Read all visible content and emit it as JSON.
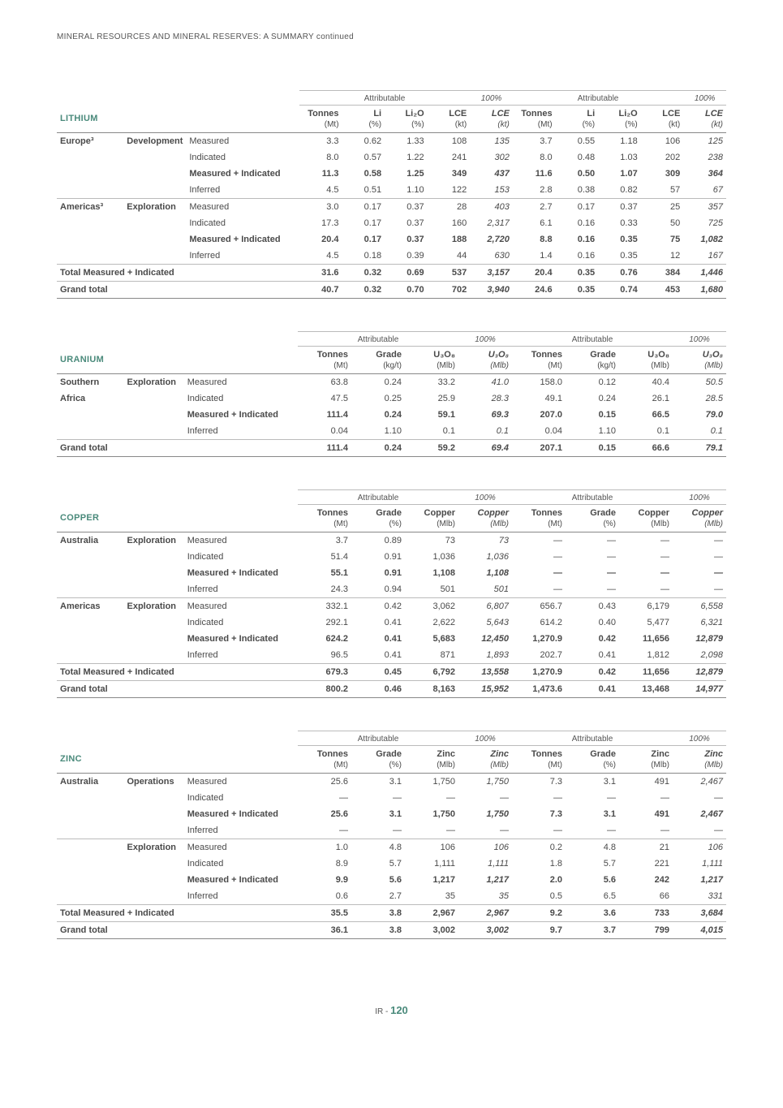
{
  "page_header": "MINERAL RESOURCES AND MINERAL RESERVES: A SUMMARY continued",
  "footer_prefix": "IR - ",
  "footer_page": "120",
  "group_labels": {
    "attributable": "Attributable",
    "hundred": "100%"
  },
  "em_dash": "—",
  "tables": [
    {
      "commodity": "LITHIUM",
      "columns": {
        "names": [
          "Tonnes",
          "Li",
          "Li₂O",
          "LCE",
          "LCE",
          "Tonnes",
          "Li",
          "Li₂O",
          "LCE",
          "LCE"
        ],
        "units": [
          "(Mt)",
          "(%)",
          "(%)",
          "(kt)",
          "(kt)",
          "(Mt)",
          "(%)",
          "(%)",
          "(kt)",
          "(kt)"
        ],
        "hundred": [
          false,
          false,
          false,
          false,
          true,
          false,
          false,
          false,
          false,
          true
        ]
      },
      "rows": [
        {
          "region": "Europe³",
          "stage": "Development",
          "cat": "Measured",
          "v": [
            "3.3",
            "0.62",
            "1.33",
            "108",
            "135",
            "3.7",
            "0.55",
            "1.18",
            "106",
            "125"
          ],
          "top": "section"
        },
        {
          "region": "",
          "stage": "",
          "cat": "Indicated",
          "v": [
            "8.0",
            "0.57",
            "1.22",
            "241",
            "302",
            "8.0",
            "0.48",
            "1.03",
            "202",
            "238"
          ]
        },
        {
          "region": "",
          "stage": "",
          "cat": "Measured + Indicated",
          "v": [
            "11.3",
            "0.58",
            "1.25",
            "349",
            "437",
            "11.6",
            "0.50",
            "1.07",
            "309",
            "364"
          ],
          "bold": true
        },
        {
          "region": "",
          "stage": "",
          "cat": "Inferred",
          "v": [
            "4.5",
            "0.51",
            "1.10",
            "122",
            "153",
            "2.8",
            "0.38",
            "0.82",
            "57",
            "67"
          ]
        },
        {
          "region": "Americas³",
          "stage": "Exploration",
          "cat": "Measured",
          "v": [
            "3.0",
            "0.17",
            "0.37",
            "28",
            "403",
            "2.7",
            "0.17",
            "0.37",
            "25",
            "357"
          ],
          "top": "thin"
        },
        {
          "region": "",
          "stage": "",
          "cat": "Indicated",
          "v": [
            "17.3",
            "0.17",
            "0.37",
            "160",
            "2,317",
            "6.1",
            "0.16",
            "0.33",
            "50",
            "725"
          ]
        },
        {
          "region": "",
          "stage": "",
          "cat": "Measured + Indicated",
          "v": [
            "20.4",
            "0.17",
            "0.37",
            "188",
            "2,720",
            "8.8",
            "0.16",
            "0.35",
            "75",
            "1,082"
          ],
          "bold": true
        },
        {
          "region": "",
          "stage": "",
          "cat": "Inferred",
          "v": [
            "4.5",
            "0.18",
            "0.39",
            "44",
            "630",
            "1.4",
            "0.16",
            "0.35",
            "12",
            "167"
          ]
        },
        {
          "region": "Total Measured + Indicated",
          "span": 3,
          "v": [
            "31.6",
            "0.32",
            "0.69",
            "537",
            "3,157",
            "20.4",
            "0.35",
            "0.76",
            "384",
            "1,446"
          ],
          "bold": true,
          "top": "thin"
        },
        {
          "region": "Grand total",
          "span": 3,
          "v": [
            "40.7",
            "0.32",
            "0.70",
            "702",
            "3,940",
            "24.6",
            "0.35",
            "0.74",
            "453",
            "1,680"
          ],
          "bold": true,
          "bottom": "section",
          "top": "thin"
        }
      ]
    },
    {
      "commodity": "URANIUM",
      "columns": {
        "names": [
          "Tonnes",
          "Grade",
          "U₃O₈",
          "U₃O₈",
          "Tonnes",
          "Grade",
          "U₃O₈",
          "U₃O₈"
        ],
        "units": [
          "(Mt)",
          "(kg/t)",
          "(Mlb)",
          "(Mlb)",
          "(Mt)",
          "(kg/t)",
          "(Mlb)",
          "(Mlb)"
        ],
        "hundred": [
          false,
          false,
          false,
          true,
          false,
          false,
          false,
          true
        ]
      },
      "rows": [
        {
          "region": "Southern",
          "stage": "Exploration",
          "cat": "Measured",
          "v": [
            "63.8",
            "0.24",
            "33.2",
            "41.0",
            "158.0",
            "0.12",
            "40.4",
            "50.5"
          ],
          "top": "section"
        },
        {
          "region": "Africa",
          "stage": "",
          "cat": "Indicated",
          "v": [
            "47.5",
            "0.25",
            "25.9",
            "28.3",
            "49.1",
            "0.24",
            "26.1",
            "28.5"
          ]
        },
        {
          "region": "",
          "stage": "",
          "cat": "Measured + Indicated",
          "v": [
            "111.4",
            "0.24",
            "59.1",
            "69.3",
            "207.0",
            "0.15",
            "66.5",
            "79.0"
          ],
          "bold": true
        },
        {
          "region": "",
          "stage": "",
          "cat": "Inferred",
          "v": [
            "0.04",
            "1.10",
            "0.1",
            "0.1",
            "0.04",
            "1.10",
            "0.1",
            "0.1"
          ]
        },
        {
          "region": "Grand total",
          "span": 3,
          "v": [
            "111.4",
            "0.24",
            "59.2",
            "69.4",
            "207.1",
            "0.15",
            "66.6",
            "79.1"
          ],
          "bold": true,
          "bottom": "section",
          "top": "thin"
        }
      ]
    },
    {
      "commodity": "COPPER",
      "columns": {
        "names": [
          "Tonnes",
          "Grade",
          "Copper",
          "Copper",
          "Tonnes",
          "Grade",
          "Copper",
          "Copper"
        ],
        "units": [
          "(Mt)",
          "(%)",
          "(Mlb)",
          "(Mlb)",
          "(Mt)",
          "(%)",
          "(Mlb)",
          "(Mlb)"
        ],
        "hundred": [
          false,
          false,
          false,
          true,
          false,
          false,
          false,
          true
        ]
      },
      "rows": [
        {
          "region": "Australia",
          "stage": "Exploration",
          "cat": "Measured",
          "v": [
            "3.7",
            "0.89",
            "73",
            "73",
            "—",
            "—",
            "—",
            "—"
          ],
          "top": "section"
        },
        {
          "region": "",
          "stage": "",
          "cat": "Indicated",
          "v": [
            "51.4",
            "0.91",
            "1,036",
            "1,036",
            "—",
            "—",
            "—",
            "—"
          ]
        },
        {
          "region": "",
          "stage": "",
          "cat": "Measured + Indicated",
          "v": [
            "55.1",
            "0.91",
            "1,108",
            "1,108",
            "—",
            "—",
            "—",
            "—"
          ],
          "bold": true
        },
        {
          "region": "",
          "stage": "",
          "cat": "Inferred",
          "v": [
            "24.3",
            "0.94",
            "501",
            "501",
            "—",
            "—",
            "—",
            "—"
          ]
        },
        {
          "region": "Americas",
          "stage": "Exploration",
          "cat": "Measured",
          "v": [
            "332.1",
            "0.42",
            "3,062",
            "6,807",
            "656.7",
            "0.43",
            "6,179",
            "6,558"
          ],
          "top": "thin"
        },
        {
          "region": "",
          "stage": "",
          "cat": "Indicated",
          "v": [
            "292.1",
            "0.41",
            "2,622",
            "5,643",
            "614.2",
            "0.40",
            "5,477",
            "6,321"
          ]
        },
        {
          "region": "",
          "stage": "",
          "cat": "Measured + Indicated",
          "v": [
            "624.2",
            "0.41",
            "5,683",
            "12,450",
            "1,270.9",
            "0.42",
            "11,656",
            "12,879"
          ],
          "bold": true
        },
        {
          "region": "",
          "stage": "",
          "cat": "Inferred",
          "v": [
            "96.5",
            "0.41",
            "871",
            "1,893",
            "202.7",
            "0.41",
            "1,812",
            "2,098"
          ]
        },
        {
          "region": "Total Measured + Indicated",
          "span": 3,
          "v": [
            "679.3",
            "0.45",
            "6,792",
            "13,558",
            "1,270.9",
            "0.42",
            "11,656",
            "12,879"
          ],
          "bold": true,
          "top": "thin"
        },
        {
          "region": "Grand total",
          "span": 3,
          "v": [
            "800.2",
            "0.46",
            "8,163",
            "15,952",
            "1,473.6",
            "0.41",
            "13,468",
            "14,977"
          ],
          "bold": true,
          "bottom": "section",
          "top": "thin"
        }
      ]
    },
    {
      "commodity": "ZINC",
      "columns": {
        "names": [
          "Tonnes",
          "Grade",
          "Zinc",
          "Zinc",
          "Tonnes",
          "Grade",
          "Zinc",
          "Zinc"
        ],
        "units": [
          "(Mt)",
          "(%)",
          "(Mlb)",
          "(Mlb)",
          "(Mt)",
          "(%)",
          "(Mlb)",
          "(Mlb)"
        ],
        "hundred": [
          false,
          false,
          false,
          true,
          false,
          false,
          false,
          true
        ]
      },
      "rows": [
        {
          "region": "Australia",
          "stage": "Operations",
          "cat": "Measured",
          "v": [
            "25.6",
            "3.1",
            "1,750",
            "1,750",
            "7.3",
            "3.1",
            "491",
            "2,467"
          ],
          "top": "section"
        },
        {
          "region": "",
          "stage": "",
          "cat": "Indicated",
          "v": [
            "—",
            "—",
            "—",
            "—",
            "—",
            "—",
            "—",
            "—"
          ]
        },
        {
          "region": "",
          "stage": "",
          "cat": "Measured + Indicated",
          "v": [
            "25.6",
            "3.1",
            "1,750",
            "1,750",
            "7.3",
            "3.1",
            "491",
            "2,467"
          ],
          "bold": true
        },
        {
          "region": "",
          "stage": "",
          "cat": "Inferred",
          "v": [
            "—",
            "—",
            "—",
            "—",
            "—",
            "—",
            "—",
            "—"
          ]
        },
        {
          "region": "",
          "stage": "Exploration",
          "cat": "Measured",
          "v": [
            "1.0",
            "4.8",
            "106",
            "106",
            "0.2",
            "4.8",
            "21",
            "106"
          ],
          "top": "thin"
        },
        {
          "region": "",
          "stage": "",
          "cat": "Indicated",
          "v": [
            "8.9",
            "5.7",
            "1,111",
            "1,111",
            "1.8",
            "5.7",
            "221",
            "1,111"
          ]
        },
        {
          "region": "",
          "stage": "",
          "cat": "Measured + Indicated",
          "v": [
            "9.9",
            "5.6",
            "1,217",
            "1,217",
            "2.0",
            "5.6",
            "242",
            "1,217"
          ],
          "bold": true
        },
        {
          "region": "",
          "stage": "",
          "cat": "Inferred",
          "v": [
            "0.6",
            "2.7",
            "35",
            "35",
            "0.5",
            "6.5",
            "66",
            "331"
          ]
        },
        {
          "region": "Total Measured + Indicated",
          "span": 3,
          "v": [
            "35.5",
            "3.8",
            "2,967",
            "2,967",
            "9.2",
            "3.6",
            "733",
            "3,684"
          ],
          "bold": true,
          "top": "thin"
        },
        {
          "region": "Grand total",
          "span": 3,
          "v": [
            "36.1",
            "3.8",
            "3,002",
            "3,002",
            "9.7",
            "3.7",
            "799",
            "4,015"
          ],
          "bold": true,
          "bottom": "section",
          "top": "thin"
        }
      ]
    }
  ]
}
